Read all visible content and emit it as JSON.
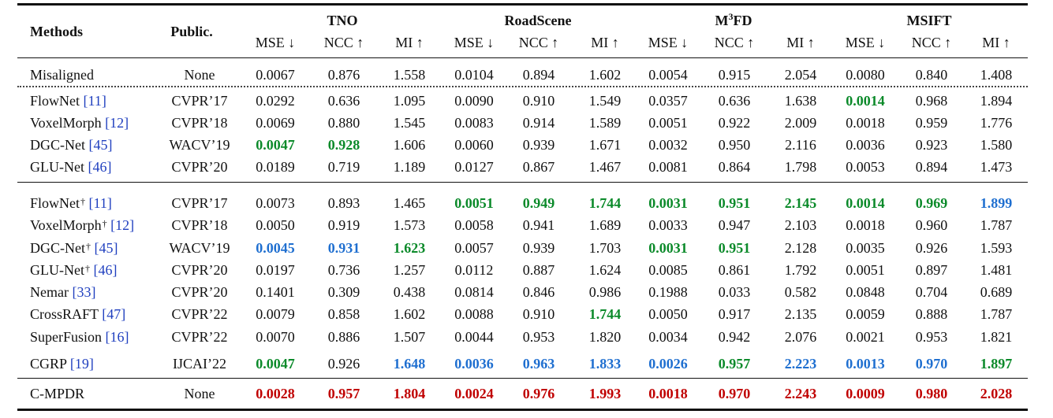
{
  "header": {
    "methods": "Methods",
    "public": "Public.",
    "datasets": [
      {
        "pre": "TNO",
        "sup": "",
        "post": ""
      },
      {
        "pre": "RoadScene",
        "sup": "",
        "post": ""
      },
      {
        "pre": "M",
        "sup": "3",
        "post": "FD"
      },
      {
        "pre": "MSIFT",
        "sup": "",
        "post": ""
      }
    ],
    "metrics": [
      "MSE ↓",
      "NCC ↑",
      "MI ↑",
      "MSE ↓",
      "NCC ↑",
      "MI ↑",
      "MSE ↓",
      "NCC ↑",
      "MI ↑",
      "MSE ↓",
      "NCC ↑",
      "MI ↑"
    ]
  },
  "colors": {
    "red": "#c00000",
    "blue": "#1f6fd0",
    "green": "#0b8a2a"
  },
  "rows": [
    {
      "group": 0,
      "name": "Misaligned",
      "ref": "",
      "dagger": false,
      "venue": "None",
      "values": [
        "0.0067",
        "0.876",
        "1.558",
        "0.0104",
        "0.894",
        "1.602",
        "0.0054",
        "0.915",
        "2.054",
        "0.0080",
        "0.840",
        "1.408"
      ],
      "styles": [
        "",
        "",
        "",
        "",
        "",
        "",
        "",
        "",
        "",
        "",
        "",
        ""
      ]
    },
    {
      "group": 1,
      "name": "FlowNet",
      "ref": "[11]",
      "dagger": false,
      "venue": "CVPR’17",
      "values": [
        "0.0292",
        "0.636",
        "1.095",
        "0.0090",
        "0.910",
        "1.549",
        "0.0357",
        "0.636",
        "1.638",
        "0.0014",
        "0.968",
        "1.894"
      ],
      "styles": [
        "",
        "",
        "",
        "",
        "",
        "",
        "",
        "",
        "",
        "green",
        "",
        ""
      ]
    },
    {
      "group": 1,
      "name": "VoxelMorph",
      "ref": "[12]",
      "dagger": false,
      "venue": "CVPR’18",
      "values": [
        "0.0069",
        "0.880",
        "1.545",
        "0.0083",
        "0.914",
        "1.589",
        "0.0051",
        "0.922",
        "2.009",
        "0.0018",
        "0.959",
        "1.776"
      ],
      "styles": [
        "",
        "",
        "",
        "",
        "",
        "",
        "",
        "",
        "",
        "",
        "",
        ""
      ]
    },
    {
      "group": 1,
      "name": "DGC-Net",
      "ref": "[45]",
      "dagger": false,
      "venue": "WACV’19",
      "values": [
        "0.0047",
        "0.928",
        "1.606",
        "0.0060",
        "0.939",
        "1.671",
        "0.0032",
        "0.950",
        "2.116",
        "0.0036",
        "0.923",
        "1.580"
      ],
      "styles": [
        "green",
        "green",
        "",
        "",
        "",
        "",
        "",
        "",
        "",
        "",
        "",
        ""
      ]
    },
    {
      "group": 1,
      "name": "GLU-Net",
      "ref": "[46]",
      "dagger": false,
      "venue": "CVPR’20",
      "values": [
        "0.0189",
        "0.719",
        "1.189",
        "0.0127",
        "0.867",
        "1.467",
        "0.0081",
        "0.864",
        "1.798",
        "0.0053",
        "0.894",
        "1.473"
      ],
      "styles": [
        "",
        "",
        "",
        "",
        "",
        "",
        "",
        "",
        "",
        "",
        "",
        ""
      ]
    },
    {
      "group": 2,
      "name": "FlowNet",
      "ref": "[11]",
      "dagger": true,
      "venue": "CVPR’17",
      "values": [
        "0.0073",
        "0.893",
        "1.465",
        "0.0051",
        "0.949",
        "1.744",
        "0.0031",
        "0.951",
        "2.145",
        "0.0014",
        "0.969",
        "1.899"
      ],
      "styles": [
        "",
        "",
        "",
        "green",
        "green",
        "green",
        "green",
        "green",
        "green",
        "green",
        "green",
        "blue"
      ]
    },
    {
      "group": 2,
      "name": "VoxelMorph",
      "ref": "[12]",
      "dagger": true,
      "venue": "CVPR’18",
      "values": [
        "0.0050",
        "0.919",
        "1.573",
        "0.0058",
        "0.941",
        "1.689",
        "0.0033",
        "0.947",
        "2.103",
        "0.0018",
        "0.960",
        "1.787"
      ],
      "styles": [
        "",
        "",
        "",
        "",
        "",
        "",
        "",
        "",
        "",
        "",
        "",
        ""
      ]
    },
    {
      "group": 2,
      "name": "DGC-Net",
      "ref": "[45]",
      "dagger": true,
      "venue": "WACV’19",
      "values": [
        "0.0045",
        "0.931",
        "1.623",
        "0.0057",
        "0.939",
        "1.703",
        "0.0031",
        "0.951",
        "2.128",
        "0.0035",
        "0.926",
        "1.593"
      ],
      "styles": [
        "blue",
        "blue",
        "green",
        "",
        "",
        "",
        "green",
        "green",
        "",
        "",
        "",
        ""
      ]
    },
    {
      "group": 2,
      "name": "GLU-Net",
      "ref": "[46]",
      "dagger": true,
      "venue": "CVPR’20",
      "values": [
        "0.0197",
        "0.736",
        "1.257",
        "0.0112",
        "0.887",
        "1.624",
        "0.0085",
        "0.861",
        "1.792",
        "0.0051",
        "0.897",
        "1.481"
      ],
      "styles": [
        "",
        "",
        "",
        "",
        "",
        "",
        "",
        "",
        "",
        "",
        "",
        ""
      ]
    },
    {
      "group": 2,
      "name": "Nemar",
      "ref": "[33]",
      "dagger": false,
      "venue": "CVPR’20",
      "values": [
        "0.1401",
        "0.309",
        "0.438",
        "0.0814",
        "0.846",
        "0.986",
        "0.1988",
        "0.033",
        "0.582",
        "0.0848",
        "0.704",
        "0.689"
      ],
      "styles": [
        "",
        "",
        "",
        "",
        "",
        "",
        "",
        "",
        "",
        "",
        "",
        ""
      ]
    },
    {
      "group": 2,
      "name": "CrossRAFT",
      "ref": "[47]",
      "dagger": false,
      "venue": "CVPR’22",
      "values": [
        "0.0079",
        "0.858",
        "1.602",
        "0.0088",
        "0.910",
        "1.744",
        "0.0050",
        "0.917",
        "2.135",
        "0.0059",
        "0.888",
        "1.787"
      ],
      "styles": [
        "",
        "",
        "",
        "",
        "",
        "green",
        "",
        "",
        "",
        "",
        "",
        ""
      ]
    },
    {
      "group": 2,
      "name": "SuperFusion",
      "ref": "[16]",
      "dagger": false,
      "venue": "CVPR’22",
      "values": [
        "0.0070",
        "0.886",
        "1.507",
        "0.0044",
        "0.953",
        "1.820",
        "0.0034",
        "0.942",
        "2.076",
        "0.0021",
        "0.953",
        "1.821"
      ],
      "styles": [
        "",
        "",
        "",
        "",
        "",
        "",
        "",
        "",
        "",
        "",
        "",
        ""
      ]
    },
    {
      "group": 2,
      "name": "CGRP",
      "ref": "[19]",
      "dagger": false,
      "venue": "IJCAI’22",
      "values": [
        "0.0047",
        "0.926",
        "1.648",
        "0.0036",
        "0.963",
        "1.833",
        "0.0026",
        "0.957",
        "2.223",
        "0.0013",
        "0.970",
        "1.897"
      ],
      "styles": [
        "green",
        "",
        "blue",
        "blue",
        "blue",
        "blue",
        "blue",
        "green",
        "blue",
        "blue",
        "blue",
        "green"
      ]
    },
    {
      "group": 3,
      "name": "C-MPDR",
      "ref": "",
      "dagger": false,
      "venue": "None",
      "values": [
        "0.0028",
        "0.957",
        "1.804",
        "0.0024",
        "0.976",
        "1.993",
        "0.0018",
        "0.970",
        "2.243",
        "0.0009",
        "0.980",
        "2.028"
      ],
      "styles": [
        "red",
        "red",
        "red",
        "red",
        "red",
        "red",
        "red",
        "red",
        "red",
        "red",
        "red",
        "red"
      ]
    }
  ]
}
